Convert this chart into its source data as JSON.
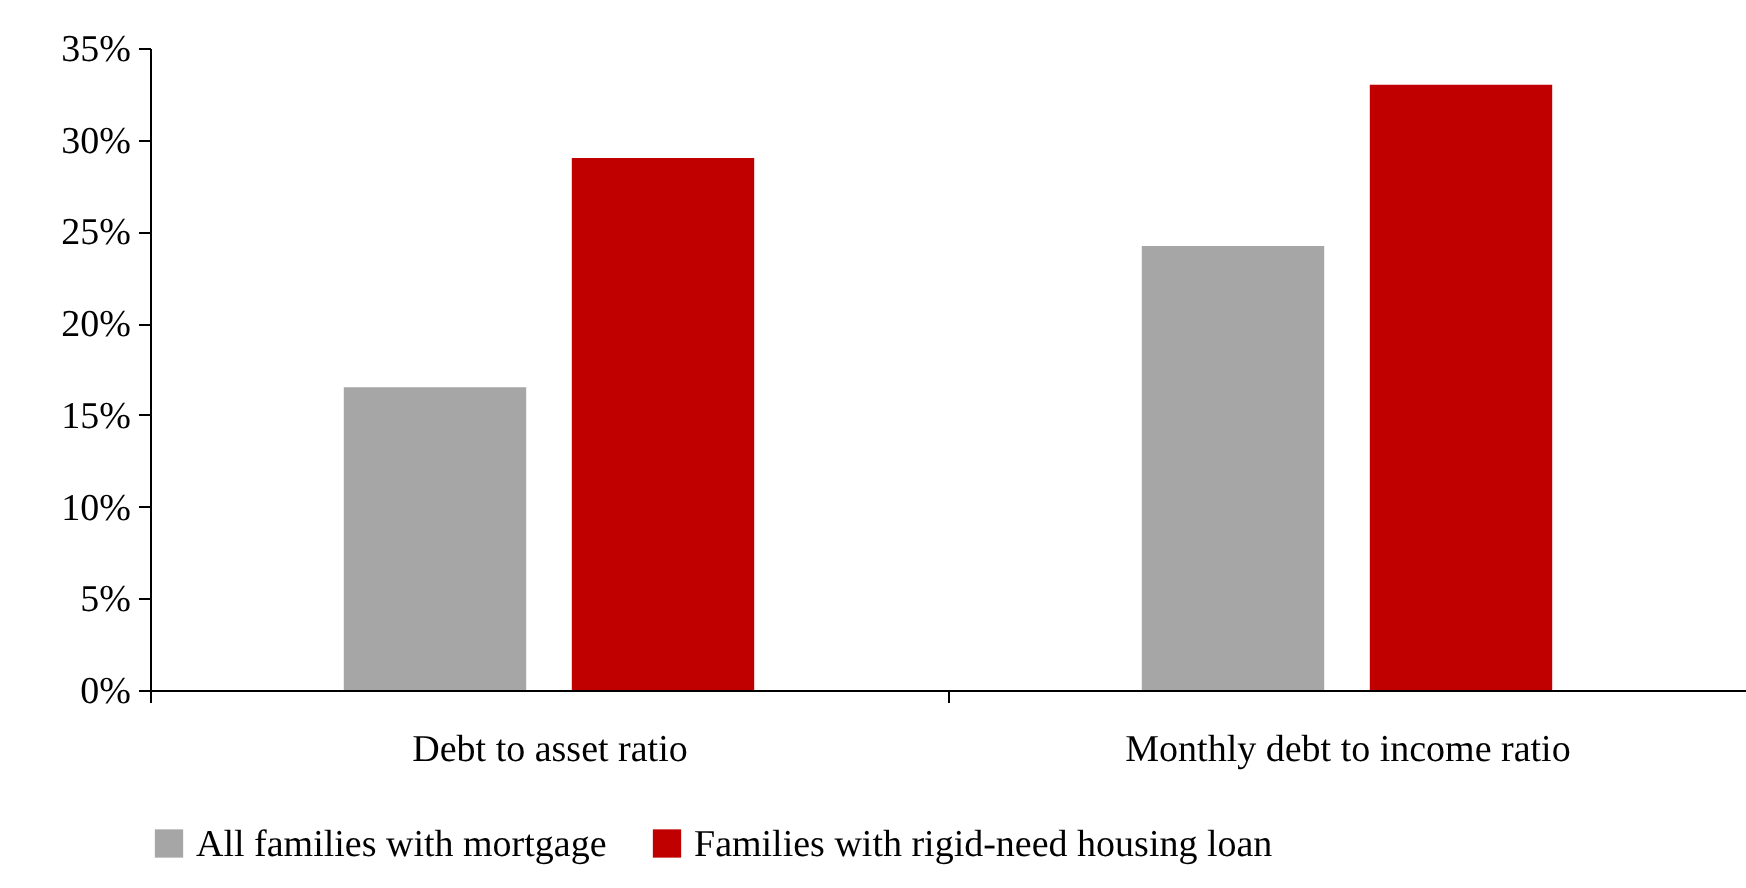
{
  "chart_data": {
    "type": "bar",
    "categories": [
      "Debt to asset ratio",
      "Monthly debt to income ratio"
    ],
    "series": [
      {
        "name": "All families with mortgage",
        "color": "#a6a6a6",
        "values": [
          16.5,
          24.2
        ]
      },
      {
        "name": "Families with rigid-need housing loan",
        "color": "#c00000",
        "values": [
          29.0,
          33.0
        ]
      }
    ],
    "ylim": [
      0,
      35
    ],
    "yticks": [
      {
        "value": 0,
        "label": "0%"
      },
      {
        "value": 5,
        "label": "5%"
      },
      {
        "value": 10,
        "label": "10%"
      },
      {
        "value": 15,
        "label": "15%"
      },
      {
        "value": 20,
        "label": "20%"
      },
      {
        "value": 25,
        "label": "25%"
      },
      {
        "value": 30,
        "label": "30%"
      },
      {
        "value": 35,
        "label": "35%"
      }
    ],
    "grid": false,
    "legend": "bottom"
  }
}
